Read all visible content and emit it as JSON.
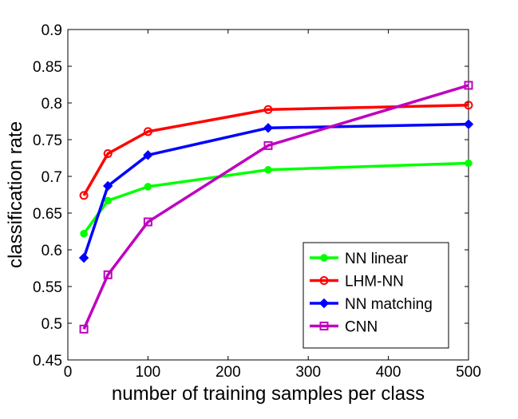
{
  "chart_data": {
    "type": "line",
    "xlabel": "number of training samples per class",
    "ylabel": "classification rate",
    "xlim": [
      0,
      500
    ],
    "ylim": [
      0.45,
      0.9
    ],
    "xticks": [
      0,
      100,
      200,
      300,
      400,
      500
    ],
    "xtick_labels": [
      "0",
      "100",
      "200",
      "300",
      "400",
      "500"
    ],
    "yticks": [
      0.45,
      0.5,
      0.55,
      0.6,
      0.65,
      0.7,
      0.75,
      0.8,
      0.85,
      0.9
    ],
    "ytick_labels": [
      "0.45",
      "0.5",
      "0.55",
      "0.6",
      "0.65",
      "0.7",
      "0.75",
      "0.8",
      "0.85",
      "0.9"
    ],
    "grid": false,
    "legend_position": "bottom-right",
    "series": [
      {
        "name": "NN linear",
        "color": "#00ff00",
        "marker": "filled-circle",
        "x": [
          20,
          50,
          100,
          250,
          500
        ],
        "y": [
          0.622,
          0.667,
          0.686,
          0.709,
          0.718
        ]
      },
      {
        "name": "LHM-NN",
        "color": "#ff0000",
        "marker": "open-circle",
        "x": [
          20,
          50,
          100,
          250,
          500
        ],
        "y": [
          0.674,
          0.731,
          0.761,
          0.791,
          0.797
        ]
      },
      {
        "name": "NN matching",
        "color": "#0000ff",
        "marker": "filled-diamond",
        "x": [
          20,
          50,
          100,
          250,
          500
        ],
        "y": [
          0.589,
          0.687,
          0.729,
          0.766,
          0.771
        ]
      },
      {
        "name": "CNN",
        "color": "#bf00bf",
        "marker": "open-square",
        "x": [
          20,
          50,
          100,
          250,
          500
        ],
        "y": [
          0.492,
          0.566,
          0.638,
          0.742,
          0.824
        ]
      }
    ]
  }
}
